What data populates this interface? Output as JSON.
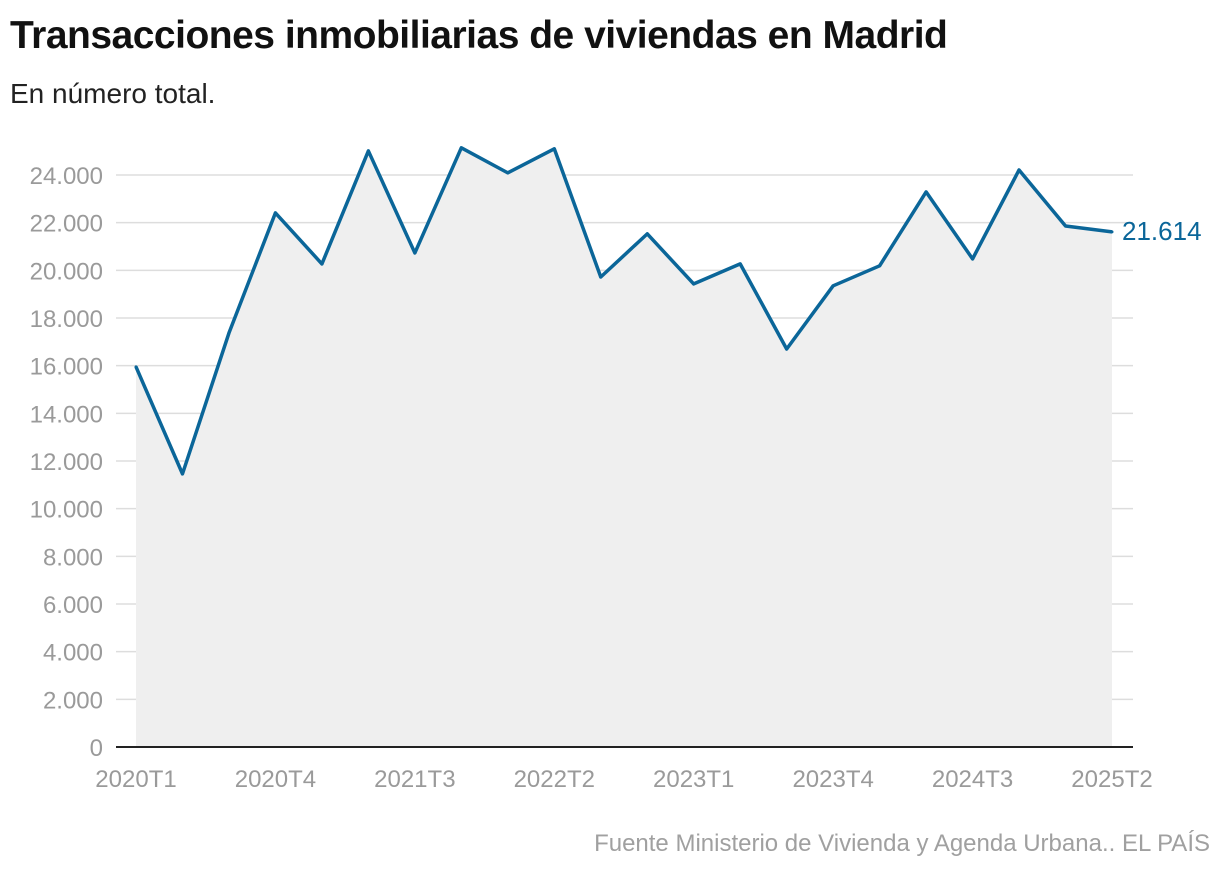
{
  "title": "Transacciones inmobiliarias de viviendas en Madrid",
  "subtitle": "En número total.",
  "source": "Fuente Ministerio de Vivienda y Agenda Urbana.. EL PAÍS",
  "colors": {
    "line": "#0b6699",
    "area": "#efefef",
    "grid": "#dddddd",
    "axis": "#222222",
    "tick": "#9a9a9a"
  },
  "chart_data": {
    "type": "area",
    "title": "Transacciones inmobiliarias de viviendas en Madrid",
    "subtitle": "En número total.",
    "x": [
      "2020T1",
      "2020T2",
      "2020T3",
      "2020T4",
      "2021T1",
      "2021T2",
      "2021T3",
      "2021T4",
      "2022T1",
      "2022T2",
      "2022T3",
      "2022T4",
      "2023T1",
      "2023T2",
      "2023T3",
      "2023T4",
      "2024T1",
      "2024T2",
      "2024T3",
      "2024T4",
      "2025T1",
      "2025T2"
    ],
    "values": [
      15950,
      11460,
      17370,
      22410,
      20270,
      25010,
      20730,
      25140,
      24090,
      25100,
      19720,
      21530,
      19430,
      20270,
      16700,
      19350,
      20190,
      23290,
      20480,
      24210,
      21860,
      21614
    ],
    "x_tick_labels": [
      "2020T1",
      "2020T4",
      "2021T3",
      "2022T2",
      "2023T1",
      "2023T4",
      "2024T3",
      "2025T2"
    ],
    "y_tick_labels": [
      "0",
      "2.000",
      "4.000",
      "6.000",
      "8.000",
      "10.000",
      "12.000",
      "14.000",
      "16.000",
      "18.000",
      "20.000",
      "22.000",
      "24.000"
    ],
    "ylim": [
      0,
      24000
    ],
    "grid": true,
    "end_label": "21.614"
  }
}
